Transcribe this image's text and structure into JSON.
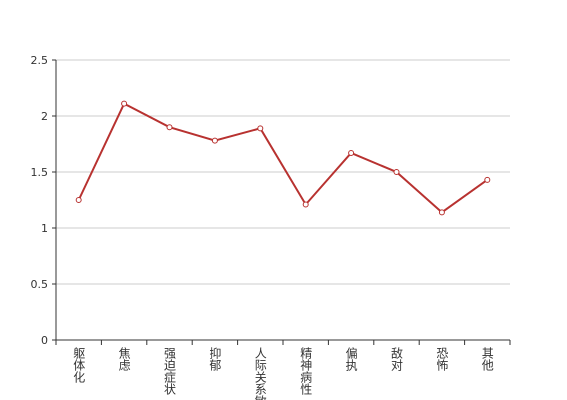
{
  "chart_data": {
    "type": "line",
    "categories": [
      "躯体化",
      "焦虑",
      "强迫症状",
      "抑郁",
      "人际关系敏感",
      "精神病性",
      "偏执",
      "敌对",
      "恐怖",
      "其他"
    ],
    "series": [
      {
        "name": null,
        "color": "#b83230",
        "values": [
          1.25,
          2.11,
          1.9,
          1.78,
          1.89,
          1.21,
          1.67,
          1.5,
          1.14,
          1.43
        ]
      }
    ],
    "ylim": [
      0,
      2.5
    ],
    "yticks": [
      0,
      0.5,
      1,
      1.5,
      2,
      2.5
    ],
    "grid": true
  }
}
